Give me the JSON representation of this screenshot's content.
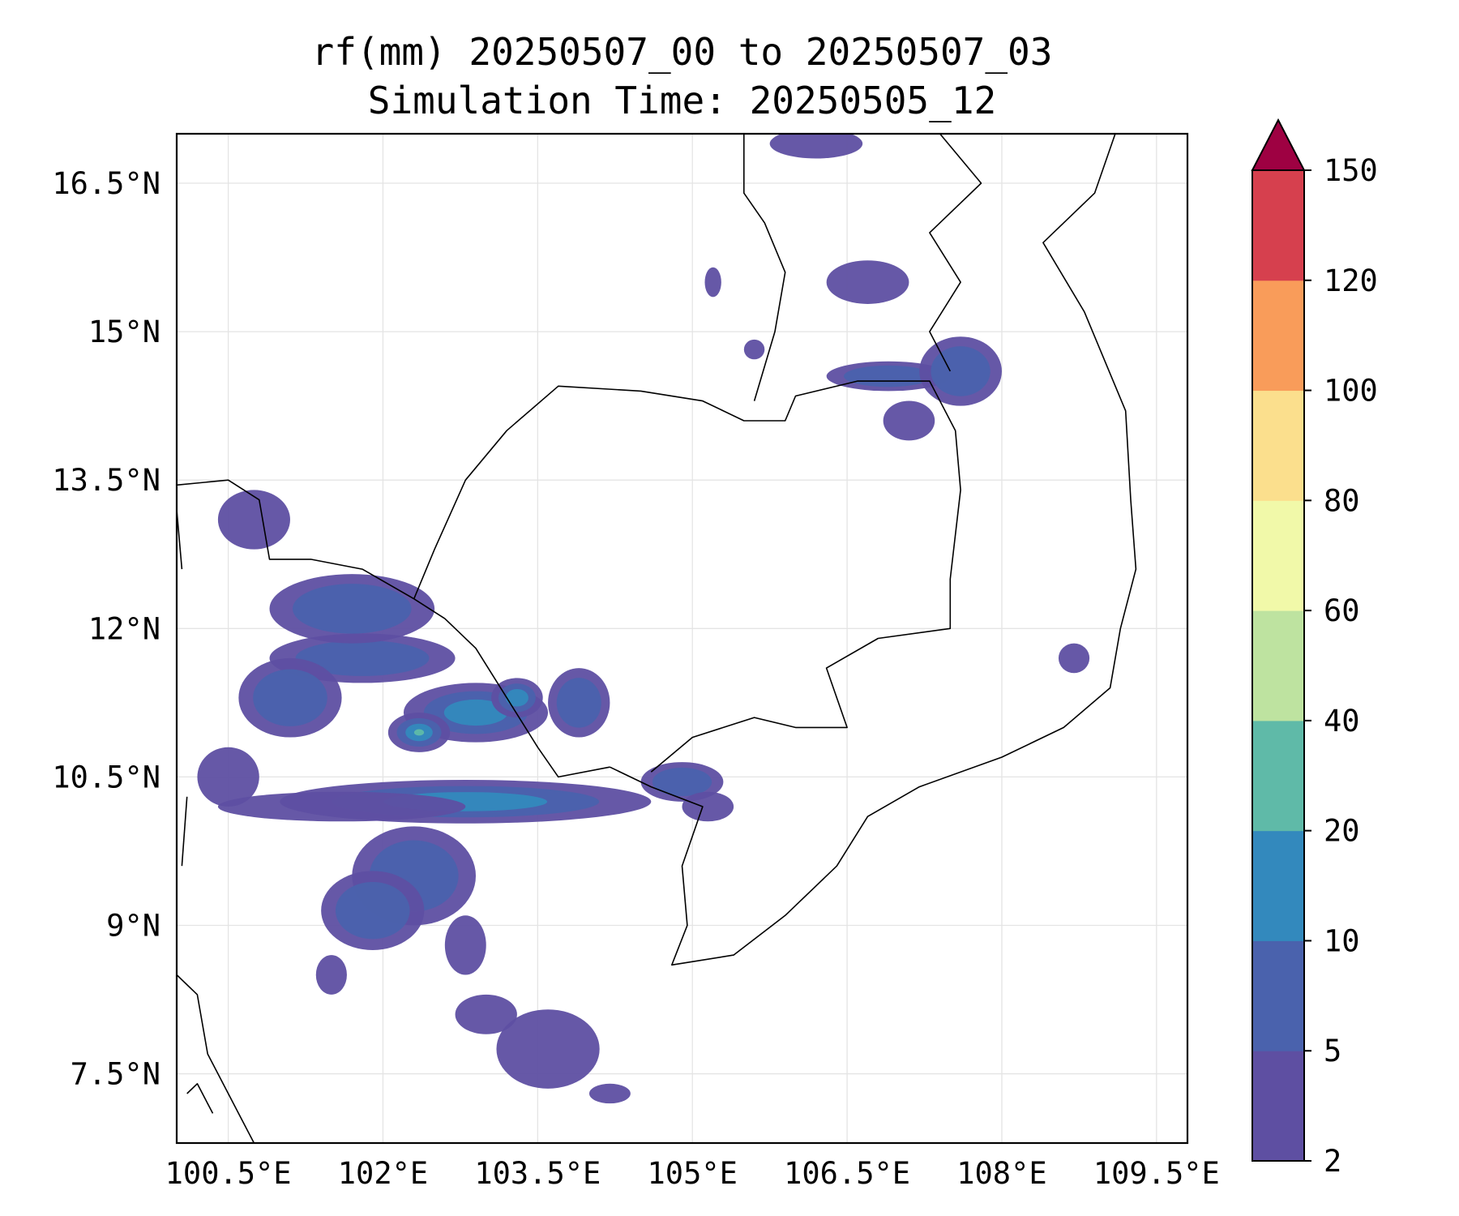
{
  "title": {
    "line1": "rf(mm) 20250507_00 to 20250507_03",
    "line2": "Simulation Time: 20250505_12"
  },
  "map": {
    "lon_range": [
      100.0,
      109.8
    ],
    "lat_range": [
      6.8,
      17.0
    ],
    "lon_ticks": [
      {
        "value": 100.5,
        "label": "100.5°E"
      },
      {
        "value": 102.0,
        "label": "102°E"
      },
      {
        "value": 103.5,
        "label": "103.5°E"
      },
      {
        "value": 105.0,
        "label": "105°E"
      },
      {
        "value": 106.5,
        "label": "106.5°E"
      },
      {
        "value": 108.0,
        "label": "108°E"
      },
      {
        "value": 109.5,
        "label": "109.5°E"
      }
    ],
    "lat_ticks": [
      {
        "value": 16.5,
        "label": "16.5°N"
      },
      {
        "value": 15.0,
        "label": "15°N"
      },
      {
        "value": 13.5,
        "label": "13.5°N"
      },
      {
        "value": 12.0,
        "label": "12°N"
      },
      {
        "value": 10.5,
        "label": "10.5°N"
      },
      {
        "value": 9.0,
        "label": "9°N"
      },
      {
        "value": 7.5,
        "label": "7.5°N"
      }
    ],
    "grid": true,
    "coastline_color": "#000000"
  },
  "colorbar": {
    "levels": [
      "2",
      "5",
      "10",
      "20",
      "40",
      "60",
      "80",
      "100",
      "120",
      "150"
    ],
    "colors": [
      "#5e4fa2",
      "#4a62ad",
      "#3389bd",
      "#5fbaa8",
      "#bee3a0",
      "#f1f9a9",
      "#fbdf8d",
      "#f99c5a",
      "#d6404e"
    ],
    "extend_color": "#9e0142",
    "extend": "max"
  },
  "chart_data": {
    "type": "heatmap",
    "title": "rf(mm) 20250507_00 to 20250507_03\nSimulation Time: 20250505_12",
    "x_label": "",
    "y_label": "",
    "x_range_deg_E": [
      100.0,
      109.8
    ],
    "y_range_deg_N": [
      6.8,
      17.0
    ],
    "units": "mm",
    "contour_levels": [
      2,
      5,
      10,
      20,
      40,
      60,
      80,
      100,
      120,
      150
    ],
    "rain_cells": [
      {
        "lon": 102.9,
        "lat": 11.15,
        "r_lon": 0.7,
        "r_lat": 0.3,
        "value": 12
      },
      {
        "lon": 102.35,
        "lat": 10.95,
        "r_lon": 0.3,
        "r_lat": 0.2,
        "value": 25
      },
      {
        "lon": 103.3,
        "lat": 11.3,
        "r_lon": 0.25,
        "r_lat": 0.2,
        "value": 15
      },
      {
        "lon": 102.8,
        "lat": 10.25,
        "r_lon": 1.8,
        "r_lat": 0.22,
        "value": 12
      },
      {
        "lon": 101.6,
        "lat": 10.2,
        "r_lon": 1.2,
        "r_lat": 0.15,
        "value": 4
      },
      {
        "lon": 104.9,
        "lat": 10.45,
        "r_lon": 0.4,
        "r_lat": 0.2,
        "value": 8
      },
      {
        "lon": 101.8,
        "lat": 11.7,
        "r_lon": 0.9,
        "r_lat": 0.25,
        "value": 6
      },
      {
        "lon": 101.1,
        "lat": 11.3,
        "r_lon": 0.5,
        "r_lat": 0.4,
        "value": 5
      },
      {
        "lon": 101.7,
        "lat": 12.2,
        "r_lon": 0.8,
        "r_lat": 0.35,
        "value": 5
      },
      {
        "lon": 100.75,
        "lat": 13.1,
        "r_lon": 0.35,
        "r_lat": 0.3,
        "value": 4
      },
      {
        "lon": 102.3,
        "lat": 9.5,
        "r_lon": 0.6,
        "r_lat": 0.5,
        "value": 6
      },
      {
        "lon": 101.9,
        "lat": 9.15,
        "r_lon": 0.5,
        "r_lat": 0.4,
        "value": 5
      },
      {
        "lon": 103.6,
        "lat": 7.75,
        "r_lon": 0.5,
        "r_lat": 0.4,
        "value": 4
      },
      {
        "lon": 103.0,
        "lat": 8.1,
        "r_lon": 0.3,
        "r_lat": 0.2,
        "value": 4
      },
      {
        "lon": 100.5,
        "lat": 10.5,
        "r_lon": 0.3,
        "r_lat": 0.3,
        "value": 4
      },
      {
        "lon": 106.9,
        "lat": 14.55,
        "r_lon": 0.6,
        "r_lat": 0.15,
        "value": 6
      },
      {
        "lon": 107.6,
        "lat": 14.6,
        "r_lon": 0.4,
        "r_lat": 0.35,
        "value": 5
      },
      {
        "lon": 106.7,
        "lat": 15.5,
        "r_lon": 0.4,
        "r_lat": 0.22,
        "value": 4
      },
      {
        "lon": 106.2,
        "lat": 16.9,
        "r_lon": 0.45,
        "r_lat": 0.15,
        "value": 4
      },
      {
        "lon": 107.1,
        "lat": 14.1,
        "r_lon": 0.25,
        "r_lat": 0.2,
        "value": 4
      },
      {
        "lon": 108.7,
        "lat": 11.7,
        "r_lon": 0.15,
        "r_lat": 0.15,
        "value": 4
      },
      {
        "lon": 105.6,
        "lat": 14.82,
        "r_lon": 0.1,
        "r_lat": 0.1,
        "value": 4
      },
      {
        "lon": 105.2,
        "lat": 15.5,
        "r_lon": 0.08,
        "r_lat": 0.15,
        "value": 4
      },
      {
        "lon": 103.9,
        "lat": 11.25,
        "r_lon": 0.3,
        "r_lat": 0.35,
        "value": 5
      },
      {
        "lon": 105.15,
        "lat": 10.2,
        "r_lon": 0.25,
        "r_lat": 0.15,
        "value": 4
      },
      {
        "lon": 101.5,
        "lat": 8.5,
        "r_lon": 0.15,
        "r_lat": 0.2,
        "value": 4
      },
      {
        "lon": 102.8,
        "lat": 8.8,
        "r_lon": 0.2,
        "r_lat": 0.3,
        "value": 4
      },
      {
        "lon": 104.2,
        "lat": 7.3,
        "r_lon": 0.2,
        "r_lat": 0.1,
        "value": 4
      }
    ]
  }
}
